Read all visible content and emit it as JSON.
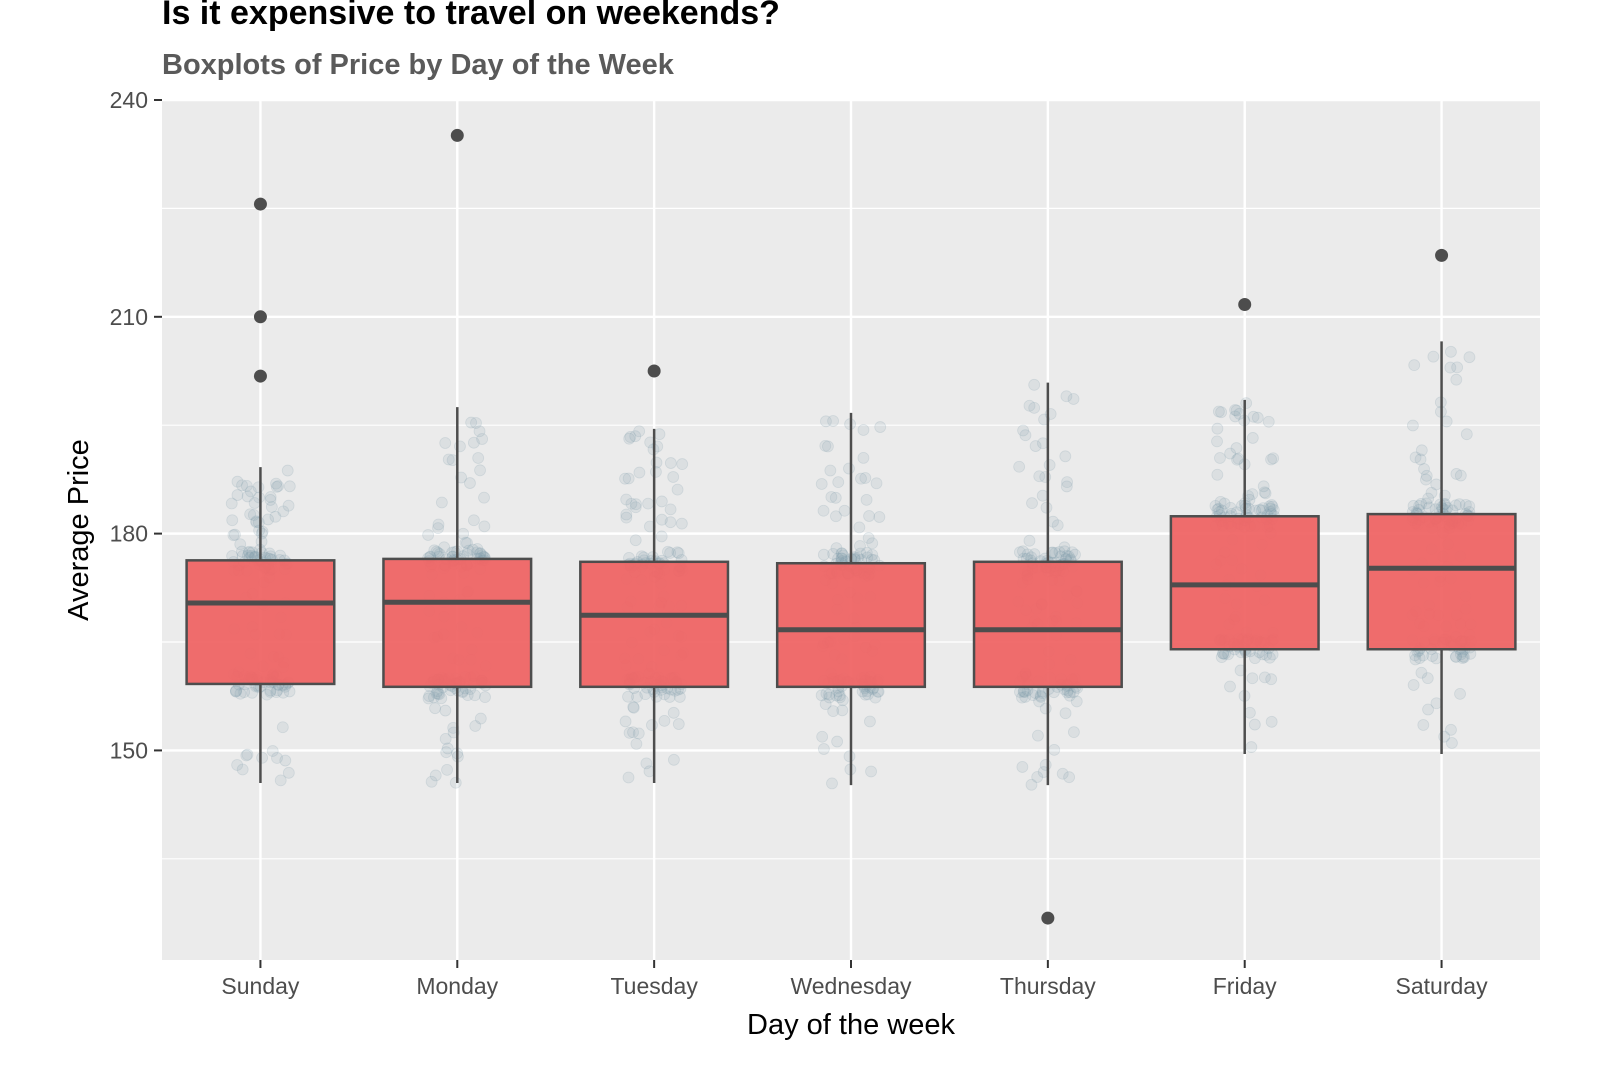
{
  "chart_data": {
    "type": "boxplot",
    "title": "Is it expensive to travel on weekends?",
    "subtitle": "Boxplots of Price by Day of the Week",
    "xlabel": "Day of the week",
    "ylabel": "Average Price",
    "categories": [
      "Sunday",
      "Monday",
      "Tuesday",
      "Wednesday",
      "Thursday",
      "Friday",
      "Saturday"
    ],
    "y_ticks": [
      150,
      180,
      210,
      240
    ],
    "ylim": [
      121,
      240
    ],
    "grid": true,
    "colors": {
      "panel_background": "#ebebeb",
      "grid_major": "#ffffff",
      "box_fill": "#ef6565",
      "box_outline": "#4d4d4d",
      "outlier": "#4d4d4d",
      "jitter_points": "#7f9aaa"
    },
    "boxes": [
      {
        "category": "Sunday",
        "whisker_low": 145.5,
        "q1": 159.2,
        "median": 170.4,
        "q3": 176.3,
        "whisker_high": 189.2,
        "outliers": [
          201.8,
          210.0,
          225.6
        ]
      },
      {
        "category": "Monday",
        "whisker_low": 145.5,
        "q1": 158.8,
        "median": 170.5,
        "q3": 176.5,
        "whisker_high": 197.5,
        "outliers": [
          235.1
        ]
      },
      {
        "category": "Tuesday",
        "whisker_low": 145.5,
        "q1": 158.8,
        "median": 168.7,
        "q3": 176.1,
        "whisker_high": 194.5,
        "outliers": [
          202.5
        ]
      },
      {
        "category": "Wednesday",
        "whisker_low": 145.2,
        "q1": 158.8,
        "median": 166.7,
        "q3": 175.9,
        "whisker_high": 196.7,
        "outliers": []
      },
      {
        "category": "Thursday",
        "whisker_low": 145.2,
        "q1": 158.8,
        "median": 166.7,
        "q3": 176.1,
        "whisker_high": 200.9,
        "outliers": [
          126.8
        ]
      },
      {
        "category": "Friday",
        "whisker_low": 149.5,
        "q1": 164.0,
        "median": 172.9,
        "q3": 182.4,
        "whisker_high": 198.5,
        "outliers": [
          211.7
        ]
      },
      {
        "category": "Saturday",
        "whisker_low": 149.5,
        "q1": 164.0,
        "median": 175.2,
        "q3": 182.7,
        "whisker_high": 206.6,
        "outliers": [
          218.5
        ]
      }
    ]
  }
}
